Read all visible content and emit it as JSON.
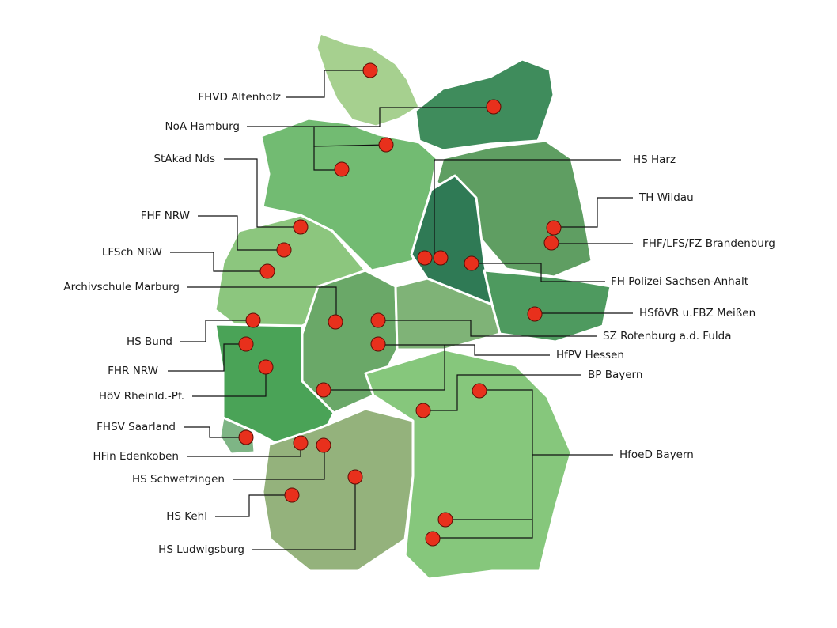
{
  "map": {
    "colors": {
      "marker": "#e8301c",
      "border": "#ffffff",
      "greens": [
        "#a6d08f",
        "#3f8c5c",
        "#72bb72",
        "#5f9e62",
        "#2f7a55",
        "#8cc67e",
        "#6aa868",
        "#7fb377",
        "#4e9a5f",
        "#4aa357",
        "#7eb585",
        "#94b27c",
        "#86c77c"
      ]
    },
    "locations": [
      {
        "label": "FHVD Altenholz"
      },
      {
        "label": "NoA Hamburg"
      },
      {
        "label": "StAkad Nds"
      },
      {
        "label": "FHF NRW"
      },
      {
        "label": "LFSch NRW"
      },
      {
        "label": "Archivschule Marburg"
      },
      {
        "label": "HS Bund"
      },
      {
        "label": "FHR NRW"
      },
      {
        "label": "HöV Rheinld.-Pf."
      },
      {
        "label": "FHSV Saarland"
      },
      {
        "label": "HFin Edenkoben"
      },
      {
        "label": "HS Schwetzingen"
      },
      {
        "label": "HS Kehl"
      },
      {
        "label": "HS Ludwigsburg"
      },
      {
        "label": "HS Harz"
      },
      {
        "label": "TH Wildau"
      },
      {
        "label": "FHF/LFS/FZ Brandenburg"
      },
      {
        "label": "FH Polizei Sachsen-Anhalt"
      },
      {
        "label": "HSföVR u.FBZ Meißen"
      },
      {
        "label": "SZ Rotenburg a.d. Fulda"
      },
      {
        "label": "HfPV Hessen"
      },
      {
        "label": "BP Bayern"
      },
      {
        "label": "HfoeD Bayern"
      }
    ]
  }
}
